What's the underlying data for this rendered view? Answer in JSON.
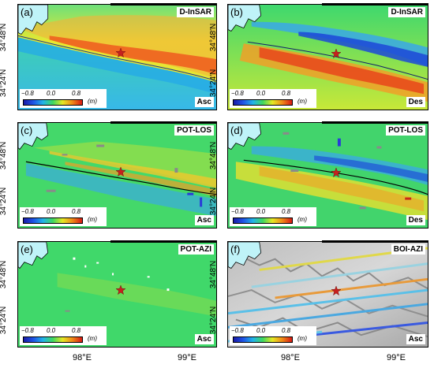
{
  "panels": [
    {
      "label": "(a)",
      "title": "D-InSAR",
      "track": "Asc"
    },
    {
      "label": "(b)",
      "title": "D-InSAR",
      "track": "Des"
    },
    {
      "label": "(c)",
      "title": "POT-LOS",
      "track": "Asc"
    },
    {
      "label": "(d)",
      "title": "POT-LOS",
      "track": "Des"
    },
    {
      "label": "(e)",
      "title": "POT-AZI",
      "track": "Asc"
    },
    {
      "label": "(f)",
      "title": "BOI-AZI",
      "track": "Asc"
    }
  ],
  "colorbar": {
    "min_label": "−0.8",
    "mid_label": "0.0",
    "max_label": "0.8",
    "unit": "(m)"
  },
  "y_ticks": {
    "upper": "34°48′N",
    "lower": "34°24′N"
  },
  "x_ticks": {
    "left": "98°E",
    "right": "99°E"
  },
  "colors": {
    "lake": "#bff3f8",
    "epicenter": "#c8201e",
    "background_green": "#3fd96b"
  }
}
